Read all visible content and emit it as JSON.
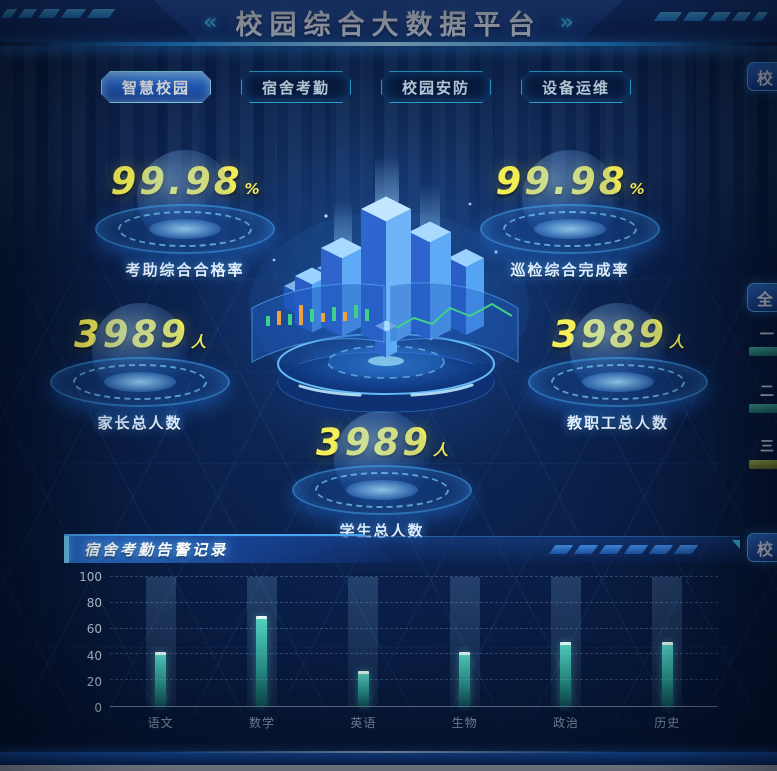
{
  "header": {
    "title": "校园综合大数据平台",
    "left_chevron": "«",
    "right_chevron": "»"
  },
  "tabs": [
    {
      "label": "智慧校园",
      "active": true
    },
    {
      "label": "宿舍考勤",
      "active": false
    },
    {
      "label": "校园安防",
      "active": false
    },
    {
      "label": "设备运维",
      "active": false
    }
  ],
  "stats": [
    {
      "value": "99.98",
      "unit": "%",
      "label": "考助综合合格率"
    },
    {
      "value": "99.98",
      "unit": "%",
      "label": "巡检综合完成率"
    },
    {
      "value": "3989",
      "unit": "人",
      "label": "家长总人数"
    },
    {
      "value": "3989",
      "unit": "人",
      "label": "教职工总人数"
    },
    {
      "value": "3989",
      "unit": "人",
      "label": "学生总人数"
    }
  ],
  "right_edge": {
    "top_panel_label": "校",
    "middle_panel_label": "全",
    "bottom_panel_label": "校",
    "rank_items": [
      "一",
      "二",
      "三"
    ]
  },
  "bottom_panel": {
    "title": "宿舍考勤告警记录"
  },
  "chart_data": {
    "type": "bar",
    "title": "宿舍考勤告警记录",
    "categories": [
      "语文",
      "数学",
      "英语",
      "生物",
      "政治",
      "历史"
    ],
    "values": [
      42,
      70,
      27,
      42,
      50,
      50
    ],
    "xlabel": "",
    "ylabel": "",
    "ylim": [
      0,
      100
    ],
    "yticks": [
      0,
      20,
      40,
      60,
      80,
      100
    ],
    "grid": true,
    "legend_position": "none",
    "bar_color": "#3fc3b2",
    "bar_cap_color": "#ffffff",
    "pillar_color": "rgba(128,178,224,0.18)"
  },
  "colors": {
    "accent_cyan": "#35d8ff",
    "number_yellow": "#f4ef56",
    "background": "#0b2350",
    "tab_active_fill": "#2a6cd6"
  }
}
